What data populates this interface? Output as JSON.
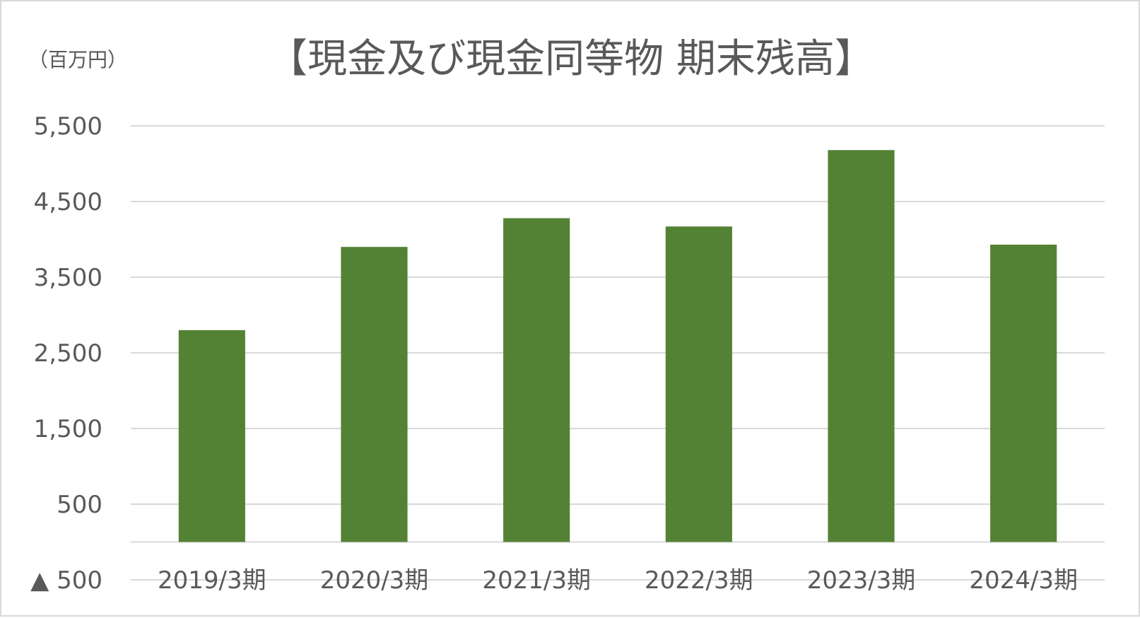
{
  "chart_data": {
    "type": "bar",
    "title": "【現金及び現金同等物 期末残高】",
    "unit_label": "（百万円）",
    "categories": [
      "2019/3期",
      "2020/3期",
      "2021/3期",
      "2022/3期",
      "2023/3期",
      "2024/3期"
    ],
    "values": [
      2800,
      3900,
      4280,
      4170,
      5180,
      3930
    ],
    "y_ticks": [
      -500,
      500,
      1500,
      2500,
      3500,
      4500,
      5500
    ],
    "y_tick_labels": [
      "▲ 500",
      "500",
      "1,500",
      "2,500",
      "3,500",
      "4,500",
      "5,500"
    ],
    "ylim": [
      -500,
      5500
    ],
    "grid": true,
    "bar_color": "#548235",
    "grid_color": "#d9d9d9",
    "text_color": "#595959"
  }
}
